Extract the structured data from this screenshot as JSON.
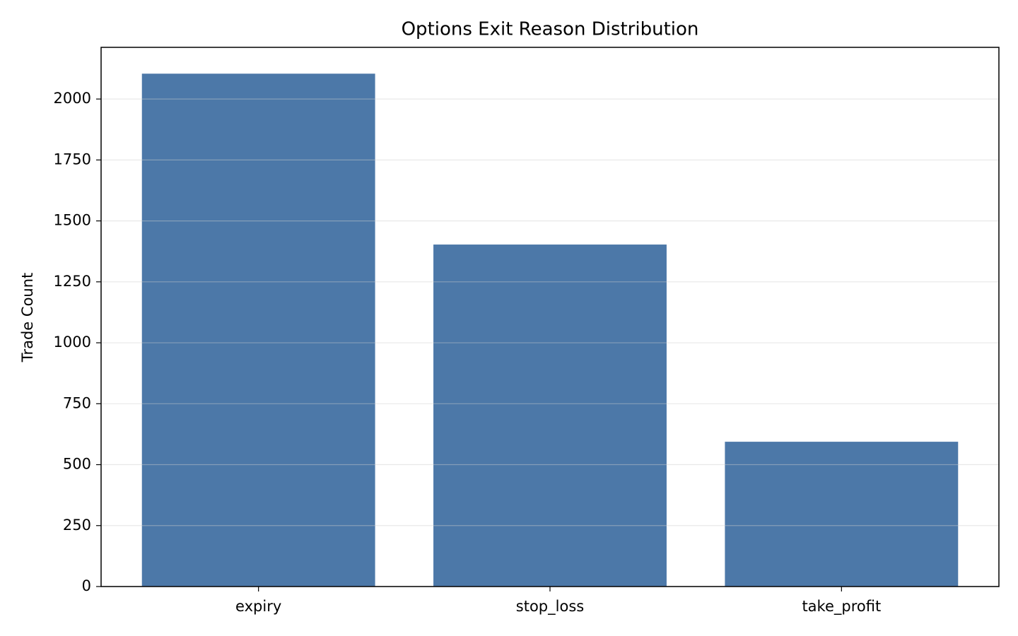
{
  "chart_data": {
    "type": "bar",
    "title": "Options Exit Reason Distribution",
    "y_label": "Trade Count",
    "categories": [
      "expiry",
      "stop_loss",
      "take_profit"
    ],
    "values": [
      2104,
      1403,
      594
    ],
    "color": "#4c78a8",
    "ylim": [
      0,
      2212
    ],
    "yticks": [
      0,
      250,
      500,
      750,
      1000,
      1250,
      1500,
      1750,
      2000
    ],
    "grid": true
  }
}
